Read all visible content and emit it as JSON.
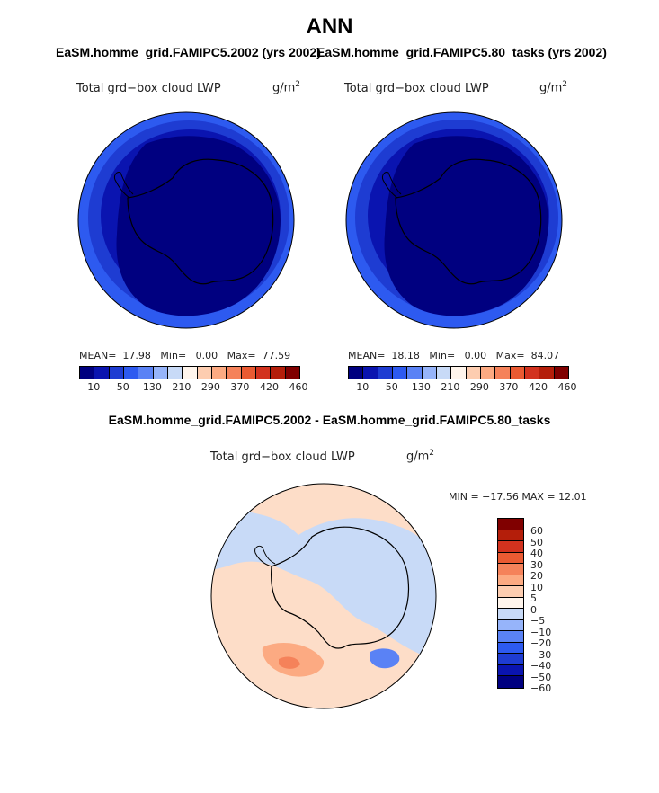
{
  "title": "ANN",
  "panel1": {
    "subtitle": "EaSM.homme_grid.FAMIPC5.2002 (yrs 2002)",
    "var_title": "Total grd−box cloud LWP",
    "units": "g/m",
    "units_exp": "2",
    "mean_label": "MEAN=",
    "mean": "17.98",
    "min_label": "Min=",
    "min": "0.00",
    "max_label": "Max=",
    "max": "77.59"
  },
  "panel2": {
    "subtitle": "EaSM.homme_grid.FAMIPC5.80_tasks (yrs 2002)",
    "var_title": "Total grd−box cloud LWP",
    "units": "g/m",
    "units_exp": "2",
    "mean_label": "MEAN=",
    "mean": "18.18",
    "min_label": "Min=",
    "min": "0.00",
    "max_label": "Max=",
    "max": "84.07"
  },
  "panel3": {
    "subtitle": "EaSM.homme_grid.FAMIPC5.2002 - EaSM.homme_grid.FAMIPC5.80_tasks",
    "var_title": "Total grd−box cloud LWP",
    "units": "g/m",
    "units_exp": "2",
    "minmax": "MIN = −17.56 MAX =  12.01"
  },
  "chart_data": [
    {
      "type": "heatmap",
      "projection": "south polar stereographic",
      "title": "Total grd−box cloud LWP",
      "units": "g/m2",
      "stats": {
        "mean": 17.98,
        "min": 0.0,
        "max": 77.59
      },
      "colorbar_ticks": [
        "10",
        "50",
        "130",
        "210",
        "290",
        "370",
        "420",
        "460"
      ],
      "colors": [
        "#000080",
        "#0a14b0",
        "#1e3cd2",
        "#2d5af0",
        "#5a82f5",
        "#96b4fa",
        "#c8daf7",
        "#fff5ec",
        "#fdcdb0",
        "#fcaa82",
        "#f5825a",
        "#ea5a32",
        "#d2321e",
        "#b41e0a",
        "#800000"
      ]
    },
    {
      "type": "heatmap",
      "projection": "south polar stereographic",
      "title": "Total grd−box cloud LWP",
      "units": "g/m2",
      "stats": {
        "mean": 18.18,
        "min": 0.0,
        "max": 84.07
      },
      "colorbar_ticks": [
        "10",
        "50",
        "130",
        "210",
        "290",
        "370",
        "420",
        "460"
      ],
      "colors": [
        "#000080",
        "#0a14b0",
        "#1e3cd2",
        "#2d5af0",
        "#5a82f5",
        "#96b4fa",
        "#c8daf7",
        "#fff5ec",
        "#fdcdb0",
        "#fcaa82",
        "#f5825a",
        "#ea5a32",
        "#d2321e",
        "#b41e0a",
        "#800000"
      ]
    },
    {
      "type": "heatmap",
      "projection": "south polar stereographic",
      "title": "Total grd−box cloud LWP",
      "units": "g/m2",
      "stats": {
        "min": -17.56,
        "max": 12.01
      },
      "colorbar_levels": [
        "60",
        "50",
        "40",
        "30",
        "20",
        "10",
        "5",
        "0",
        "−5",
        "−10",
        "−20",
        "−30",
        "−40",
        "−50",
        "−60"
      ],
      "colors": [
        "#800000",
        "#b41e0a",
        "#d2321e",
        "#ea5a32",
        "#f5825a",
        "#fcaa82",
        "#fdcdb0",
        "#fff5ec",
        "#c8daf7",
        "#96b4fa",
        "#5a82f5",
        "#2d5af0",
        "#1e3cd2",
        "#0a14b0",
        "#000080"
      ]
    }
  ]
}
